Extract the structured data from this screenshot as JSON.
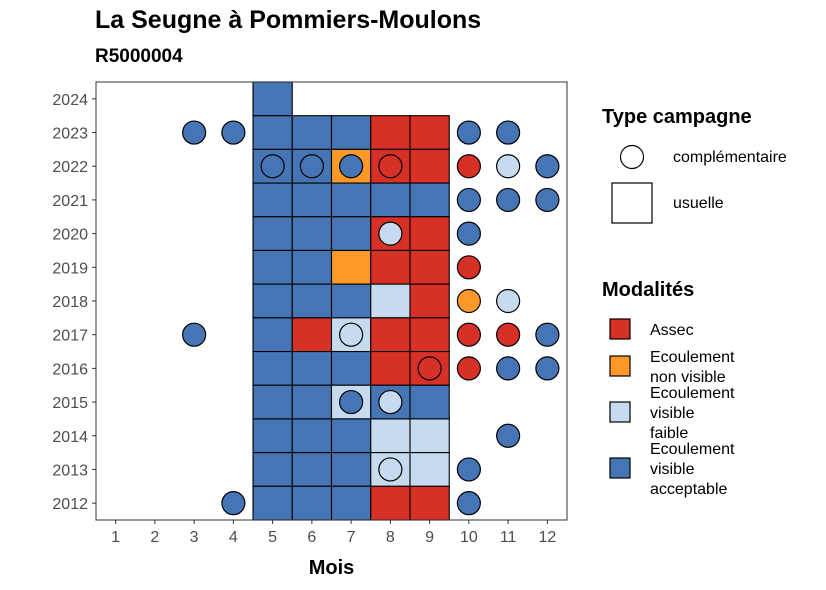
{
  "chart_data": {
    "type": "heatmap",
    "title": "La Seugne à Pommiers-Moulons",
    "subtitle": "R5000004",
    "xlabel": "Mois",
    "ylabel": "",
    "x_ticks": [
      1,
      2,
      3,
      4,
      5,
      6,
      7,
      8,
      9,
      10,
      11,
      12
    ],
    "y_ticks": [
      2012,
      2013,
      2014,
      2015,
      2016,
      2017,
      2018,
      2019,
      2020,
      2021,
      2022,
      2023,
      2024
    ],
    "xlim": [
      0.5,
      12.5
    ],
    "ylim": [
      2011.5,
      2024.5
    ],
    "grid": false,
    "legend_placement": "right",
    "colors": {
      "Assec": "#d73027",
      "Ecoulement non visible": "#fe9929",
      "Ecoulement visible faible": "#c6dbef",
      "Ecoulement visible acceptable": "#4575b4"
    },
    "legend_shape": {
      "title": "Type campagne",
      "entries": [
        {
          "label": "complémentaire",
          "shape": "circle"
        },
        {
          "label": "usuelle",
          "shape": "square"
        }
      ]
    },
    "legend_fill": {
      "title": "Modalités",
      "entries": [
        {
          "key": "Assec",
          "lines": [
            "Assec"
          ]
        },
        {
          "key": "Ecoulement non visible",
          "lines": [
            "Ecoulement",
            "non visible"
          ]
        },
        {
          "key": "Ecoulement visible faible",
          "lines": [
            "Ecoulement",
            "visible",
            "faible"
          ]
        },
        {
          "key": "Ecoulement visible acceptable",
          "lines": [
            "Ecoulement",
            "visible",
            "acceptable"
          ]
        }
      ]
    },
    "usuelle": [
      {
        "year": 2024,
        "month": 5,
        "value": "Ecoulement visible acceptable"
      },
      {
        "year": 2023,
        "month": 5,
        "value": "Ecoulement visible acceptable"
      },
      {
        "year": 2023,
        "month": 6,
        "value": "Ecoulement visible acceptable"
      },
      {
        "year": 2023,
        "month": 7,
        "value": "Ecoulement visible acceptable"
      },
      {
        "year": 2023,
        "month": 8,
        "value": "Assec"
      },
      {
        "year": 2023,
        "month": 9,
        "value": "Assec"
      },
      {
        "year": 2022,
        "month": 5,
        "value": "Ecoulement visible acceptable"
      },
      {
        "year": 2022,
        "month": 6,
        "value": "Ecoulement visible acceptable"
      },
      {
        "year": 2022,
        "month": 7,
        "value": "Ecoulement non visible"
      },
      {
        "year": 2022,
        "month": 8,
        "value": "Assec"
      },
      {
        "year": 2022,
        "month": 9,
        "value": "Assec"
      },
      {
        "year": 2021,
        "month": 5,
        "value": "Ecoulement visible acceptable"
      },
      {
        "year": 2021,
        "month": 6,
        "value": "Ecoulement visible acceptable"
      },
      {
        "year": 2021,
        "month": 7,
        "value": "Ecoulement visible acceptable"
      },
      {
        "year": 2021,
        "month": 8,
        "value": "Ecoulement visible acceptable"
      },
      {
        "year": 2021,
        "month": 9,
        "value": "Ecoulement visible acceptable"
      },
      {
        "year": 2020,
        "month": 5,
        "value": "Ecoulement visible acceptable"
      },
      {
        "year": 2020,
        "month": 6,
        "value": "Ecoulement visible acceptable"
      },
      {
        "year": 2020,
        "month": 7,
        "value": "Ecoulement visible acceptable"
      },
      {
        "year": 2020,
        "month": 8,
        "value": "Assec"
      },
      {
        "year": 2020,
        "month": 9,
        "value": "Assec"
      },
      {
        "year": 2019,
        "month": 5,
        "value": "Ecoulement visible acceptable"
      },
      {
        "year": 2019,
        "month": 6,
        "value": "Ecoulement visible acceptable"
      },
      {
        "year": 2019,
        "month": 7,
        "value": "Ecoulement non visible"
      },
      {
        "year": 2019,
        "month": 8,
        "value": "Assec"
      },
      {
        "year": 2019,
        "month": 9,
        "value": "Assec"
      },
      {
        "year": 2018,
        "month": 5,
        "value": "Ecoulement visible acceptable"
      },
      {
        "year": 2018,
        "month": 6,
        "value": "Ecoulement visible acceptable"
      },
      {
        "year": 2018,
        "month": 7,
        "value": "Ecoulement visible acceptable"
      },
      {
        "year": 2018,
        "month": 8,
        "value": "Ecoulement visible faible"
      },
      {
        "year": 2018,
        "month": 9,
        "value": "Assec"
      },
      {
        "year": 2017,
        "month": 5,
        "value": "Ecoulement visible acceptable"
      },
      {
        "year": 2017,
        "month": 6,
        "value": "Assec"
      },
      {
        "year": 2017,
        "month": 7,
        "value": "Ecoulement visible faible"
      },
      {
        "year": 2017,
        "month": 8,
        "value": "Assec"
      },
      {
        "year": 2017,
        "month": 9,
        "value": "Assec"
      },
      {
        "year": 2016,
        "month": 5,
        "value": "Ecoulement visible acceptable"
      },
      {
        "year": 2016,
        "month": 6,
        "value": "Ecoulement visible acceptable"
      },
      {
        "year": 2016,
        "month": 7,
        "value": "Ecoulement visible acceptable"
      },
      {
        "year": 2016,
        "month": 8,
        "value": "Assec"
      },
      {
        "year": 2016,
        "month": 9,
        "value": "Assec"
      },
      {
        "year": 2015,
        "month": 5,
        "value": "Ecoulement visible acceptable"
      },
      {
        "year": 2015,
        "month": 6,
        "value": "Ecoulement visible acceptable"
      },
      {
        "year": 2015,
        "month": 7,
        "value": "Ecoulement visible faible"
      },
      {
        "year": 2015,
        "month": 8,
        "value": "Ecoulement visible acceptable"
      },
      {
        "year": 2015,
        "month": 9,
        "value": "Ecoulement visible acceptable"
      },
      {
        "year": 2014,
        "month": 5,
        "value": "Ecoulement visible acceptable"
      },
      {
        "year": 2014,
        "month": 6,
        "value": "Ecoulement visible acceptable"
      },
      {
        "year": 2014,
        "month": 7,
        "value": "Ecoulement visible acceptable"
      },
      {
        "year": 2014,
        "month": 8,
        "value": "Ecoulement visible faible"
      },
      {
        "year": 2014,
        "month": 9,
        "value": "Ecoulement visible faible"
      },
      {
        "year": 2013,
        "month": 5,
        "value": "Ecoulement visible acceptable"
      },
      {
        "year": 2013,
        "month": 6,
        "value": "Ecoulement visible acceptable"
      },
      {
        "year": 2013,
        "month": 7,
        "value": "Ecoulement visible acceptable"
      },
      {
        "year": 2013,
        "month": 8,
        "value": "Ecoulement visible faible"
      },
      {
        "year": 2013,
        "month": 9,
        "value": "Ecoulement visible faible"
      },
      {
        "year": 2012,
        "month": 5,
        "value": "Ecoulement visible acceptable"
      },
      {
        "year": 2012,
        "month": 6,
        "value": "Ecoulement visible acceptable"
      },
      {
        "year": 2012,
        "month": 7,
        "value": "Ecoulement visible acceptable"
      },
      {
        "year": 2012,
        "month": 8,
        "value": "Assec"
      },
      {
        "year": 2012,
        "month": 9,
        "value": "Assec"
      }
    ],
    "complementaire": [
      {
        "year": 2023,
        "month": 3,
        "value": "Ecoulement visible acceptable"
      },
      {
        "year": 2023,
        "month": 4,
        "value": "Ecoulement visible acceptable"
      },
      {
        "year": 2023,
        "month": 10,
        "value": "Ecoulement visible acceptable"
      },
      {
        "year": 2023,
        "month": 11,
        "value": "Ecoulement visible acceptable"
      },
      {
        "year": 2022,
        "month": 5,
        "value": "Ecoulement visible acceptable"
      },
      {
        "year": 2022,
        "month": 6,
        "value": "Ecoulement visible acceptable"
      },
      {
        "year": 2022,
        "month": 7,
        "value": "Ecoulement visible acceptable"
      },
      {
        "year": 2022,
        "month": 8,
        "value": "Assec"
      },
      {
        "year": 2022,
        "month": 10,
        "value": "Assec"
      },
      {
        "year": 2022,
        "month": 11,
        "value": "Ecoulement visible faible"
      },
      {
        "year": 2022,
        "month": 12,
        "value": "Ecoulement visible acceptable"
      },
      {
        "year": 2021,
        "month": 10,
        "value": "Ecoulement visible acceptable"
      },
      {
        "year": 2021,
        "month": 11,
        "value": "Ecoulement visible acceptable"
      },
      {
        "year": 2021,
        "month": 12,
        "value": "Ecoulement visible acceptable"
      },
      {
        "year": 2020,
        "month": 8,
        "value": "Ecoulement visible faible"
      },
      {
        "year": 2020,
        "month": 10,
        "value": "Ecoulement visible acceptable"
      },
      {
        "year": 2019,
        "month": 10,
        "value": "Assec"
      },
      {
        "year": 2018,
        "month": 10,
        "value": "Ecoulement non visible"
      },
      {
        "year": 2018,
        "month": 11,
        "value": "Ecoulement visible faible"
      },
      {
        "year": 2017,
        "month": 3,
        "value": "Ecoulement visible acceptable"
      },
      {
        "year": 2017,
        "month": 7,
        "value": "Ecoulement visible faible"
      },
      {
        "year": 2017,
        "month": 10,
        "value": "Assec"
      },
      {
        "year": 2017,
        "month": 11,
        "value": "Assec"
      },
      {
        "year": 2017,
        "month": 12,
        "value": "Ecoulement visible acceptable"
      },
      {
        "year": 2016,
        "month": 9,
        "value": "Assec"
      },
      {
        "year": 2016,
        "month": 10,
        "value": "Assec"
      },
      {
        "year": 2016,
        "month": 11,
        "value": "Ecoulement visible acceptable"
      },
      {
        "year": 2016,
        "month": 12,
        "value": "Ecoulement visible acceptable"
      },
      {
        "year": 2015,
        "month": 7,
        "value": "Ecoulement visible acceptable"
      },
      {
        "year": 2015,
        "month": 8,
        "value": "Ecoulement visible faible"
      },
      {
        "year": 2014,
        "month": 11,
        "value": "Ecoulement visible acceptable"
      },
      {
        "year": 2013,
        "month": 8,
        "value": "Ecoulement visible faible"
      },
      {
        "year": 2013,
        "month": 10,
        "value": "Ecoulement visible acceptable"
      },
      {
        "year": 2012,
        "month": 4,
        "value": "Ecoulement visible acceptable"
      },
      {
        "year": 2012,
        "month": 10,
        "value": "Ecoulement visible acceptable"
      }
    ]
  }
}
